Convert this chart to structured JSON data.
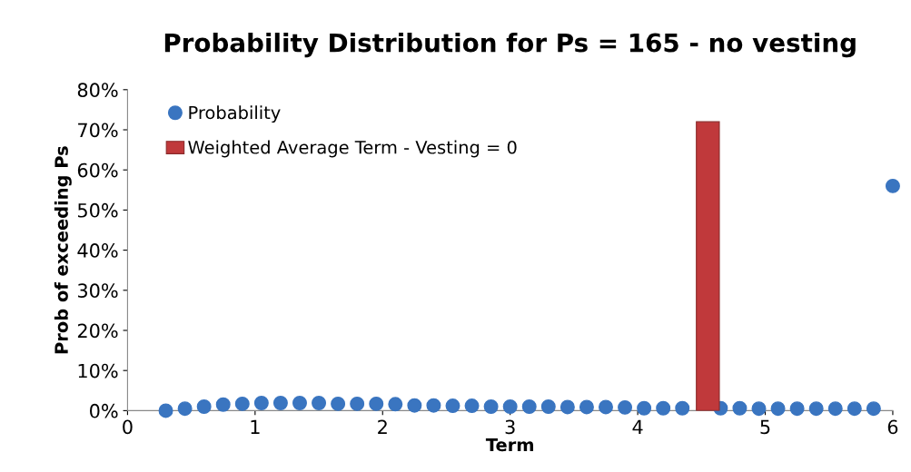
{
  "chart_data": {
    "type": "scatter",
    "title": "Probability Distribution for Ps = 165 - no vesting",
    "xlabel": "Term",
    "ylabel": "Prob of exceeding Ps",
    "xlim": [
      0,
      6
    ],
    "xticks": [
      0,
      1,
      2,
      3,
      4,
      5,
      6
    ],
    "ylim": [
      0,
      80
    ],
    "yticks": [
      {
        "value": 0,
        "label": "0%"
      },
      {
        "value": 10,
        "label": "10%"
      },
      {
        "value": 20,
        "label": "20%"
      },
      {
        "value": 30,
        "label": "30%"
      },
      {
        "value": 40,
        "label": "40%"
      },
      {
        "value": 50,
        "label": "50%"
      },
      {
        "value": 60,
        "label": "60%"
      },
      {
        "value": 70,
        "label": "70%"
      },
      {
        "value": 80,
        "label": "80%"
      }
    ],
    "grid": false,
    "legend": "top left",
    "marker": "circle",
    "series": [
      {
        "name": "Probability",
        "color": "#3a75c0",
        "x": [
          0.3,
          0.45,
          0.6,
          0.75,
          0.9,
          1.05,
          1.2,
          1.35,
          1.5,
          1.65,
          1.8,
          1.95,
          2.1,
          2.25,
          2.4,
          2.55,
          2.7,
          2.85,
          3.0,
          3.15,
          3.3,
          3.45,
          3.6,
          3.75,
          3.9,
          4.05,
          4.2,
          4.35,
          4.5,
          4.65,
          4.8,
          4.95,
          5.1,
          5.25,
          5.4,
          5.55,
          5.7,
          5.85,
          6.0
        ],
        "values": [
          0.0,
          0.5,
          1.0,
          1.5,
          1.7,
          1.9,
          1.9,
          1.9,
          1.9,
          1.7,
          1.7,
          1.7,
          1.6,
          1.3,
          1.3,
          1.2,
          1.2,
          1.0,
          1.0,
          1.0,
          1.0,
          0.9,
          0.9,
          0.9,
          0.8,
          0.6,
          0.6,
          0.6,
          null,
          0.6,
          0.6,
          0.5,
          0.5,
          0.5,
          0.5,
          0.5,
          0.5,
          0.5,
          56
        ]
      },
      {
        "name": "Weighted Average Term - Vesting = 0",
        "type": "bar",
        "color": "#c0393b",
        "x": [
          4.55
        ],
        "values": [
          72
        ]
      }
    ]
  }
}
